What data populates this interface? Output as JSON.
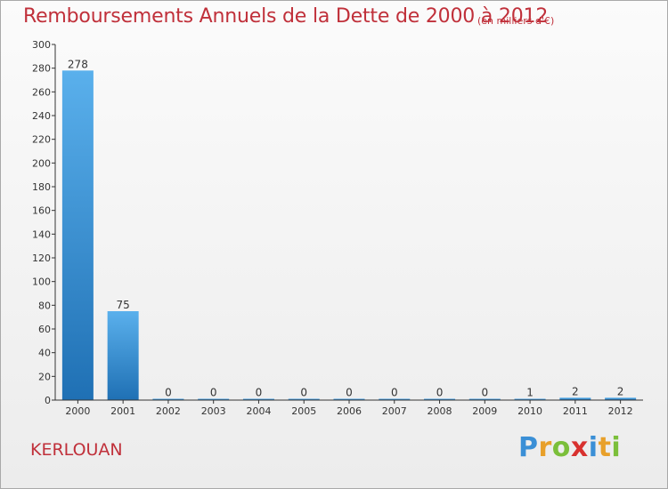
{
  "header": {
    "title": "Remboursements Annuels de la Dette de 2000 à 2012",
    "unit": "(en milliers d'€)"
  },
  "footer": {
    "commune": "KERLOUAN",
    "logo_letters": [
      {
        "ch": "P",
        "color": "#3a8fd6"
      },
      {
        "ch": "r",
        "color": "#e8a02a"
      },
      {
        "ch": "o",
        "color": "#7bbf3a"
      },
      {
        "ch": "x",
        "color": "#d8312f"
      },
      {
        "ch": "i",
        "color": "#3a8fd6"
      },
      {
        "ch": "t",
        "color": "#e8a02a"
      },
      {
        "ch": "i",
        "color": "#7bbf3a"
      }
    ]
  },
  "colors": {
    "title": "#c0303a",
    "bar_light": "#5ab0ec",
    "bar_dark": "#1f70b4",
    "axis": "#333333"
  },
  "chart_data": {
    "type": "bar",
    "title": "Remboursements Annuels de la Dette de 2000 à 2012",
    "xlabel": "",
    "ylabel": "(en milliers d'€)",
    "ylim": [
      0,
      300
    ],
    "yticks": [
      0,
      20,
      40,
      60,
      80,
      100,
      120,
      140,
      160,
      180,
      200,
      220,
      240,
      260,
      280,
      300
    ],
    "categories": [
      "2000",
      "2001",
      "2002",
      "2003",
      "2004",
      "2005",
      "2006",
      "2007",
      "2008",
      "2009",
      "2010",
      "2011",
      "2012"
    ],
    "values": [
      278,
      75,
      0,
      0,
      0,
      0,
      0,
      0,
      0,
      0,
      1,
      2,
      2
    ],
    "labels": [
      "278",
      "75",
      "0",
      "0",
      "0",
      "0",
      "0",
      "0",
      "0",
      "0",
      "1",
      "2",
      "2"
    ]
  }
}
